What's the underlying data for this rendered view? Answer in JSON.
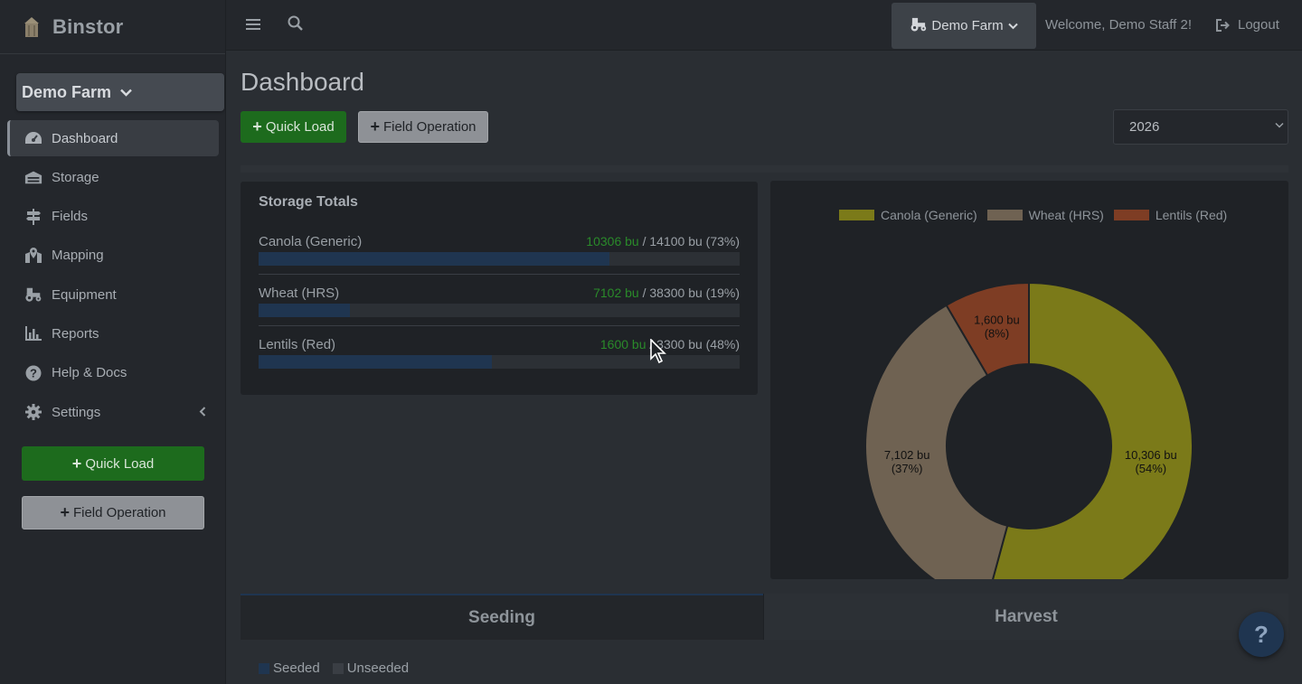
{
  "brand": {
    "name": "Binstor"
  },
  "sidebar": {
    "farm_selector": "Demo Farm",
    "items": [
      {
        "label": "Dashboard",
        "icon": "gauge-icon"
      },
      {
        "label": "Storage",
        "icon": "warehouse-icon"
      },
      {
        "label": "Fields",
        "icon": "signpost-icon"
      },
      {
        "label": "Mapping",
        "icon": "map-marker-icon"
      },
      {
        "label": "Equipment",
        "icon": "tractor-icon"
      },
      {
        "label": "Reports",
        "icon": "bar-chart-icon"
      },
      {
        "label": "Help & Docs",
        "icon": "question-circle-icon"
      },
      {
        "label": "Settings",
        "icon": "gear-icon"
      }
    ],
    "quick_load_label": "Quick Load",
    "field_operation_label": "Field Operation"
  },
  "topbar": {
    "farm_menu": "Demo Farm",
    "welcome": "Welcome, Demo Staff 2!",
    "logout": "Logout"
  },
  "main": {
    "title": "Dashboard",
    "quick_load_label": "Quick Load",
    "field_operation_label": "Field Operation",
    "year": "2026"
  },
  "storage": {
    "title": "Storage Totals",
    "rows": [
      {
        "name": "Canola (Generic)",
        "stored": "10306 bu",
        "capacity": " / 14100 bu (73%)",
        "fraction": 0.73
      },
      {
        "name": "Wheat (HRS)",
        "stored": "7102 bu",
        "capacity": " / 38300 bu (19%)",
        "fraction": 0.19
      },
      {
        "name": "Lentils (Red)",
        "stored": "1600 bu",
        "capacity": " / 3300 bu (48%)",
        "fraction": 0.485
      }
    ]
  },
  "chart_data": {
    "type": "pie",
    "donut": true,
    "categories": [
      "Canola (Generic)",
      "Wheat (HRS)",
      "Lentils (Red)"
    ],
    "values": [
      10306,
      7102,
      1600
    ],
    "labels": [
      [
        "10,306 bu",
        "(54%)"
      ],
      [
        "7,102 bu",
        "(37%)"
      ],
      [
        "1,600 bu",
        "(8%)"
      ]
    ],
    "colors": [
      "#7b7a19",
      "#6f6252",
      "#7e3d24"
    ],
    "legend_position": "top"
  },
  "tabs": {
    "seeding": "Seeding",
    "harvest": "Harvest"
  },
  "seeding_legend": {
    "seeded": "Seeded",
    "unseeded": "Unseeded",
    "seeded_color": "#1f3550",
    "unseeded_color": "#3a3e44"
  },
  "help_fab": "?"
}
